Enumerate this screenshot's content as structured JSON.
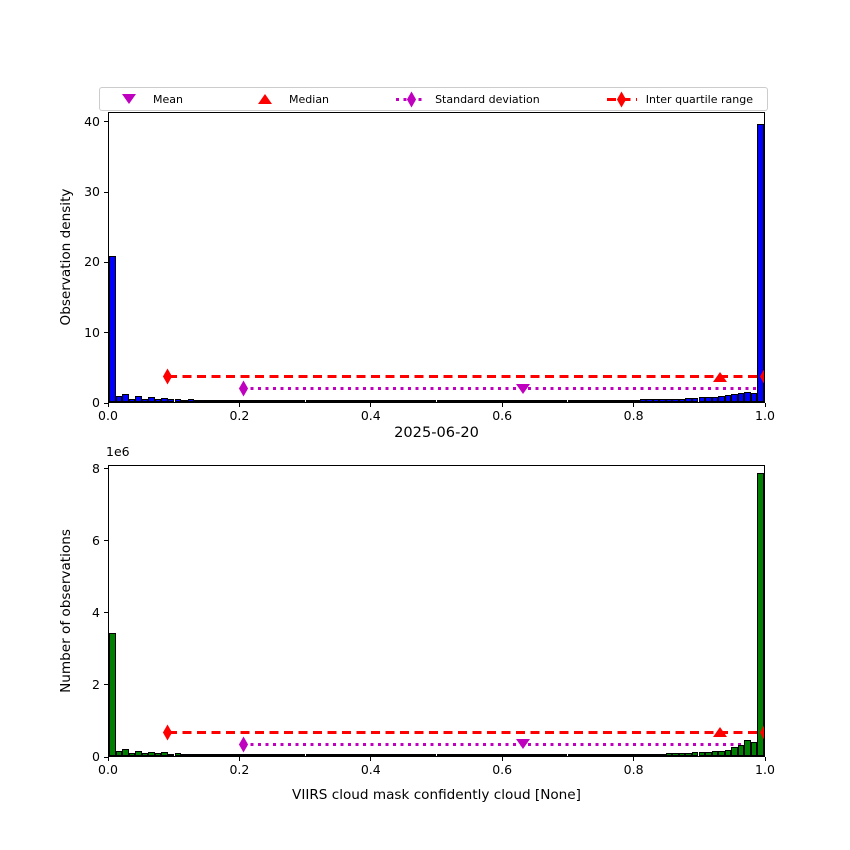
{
  "figure": {
    "title": "2025-06-20",
    "xlabel": "VIIRS cloud mask confidently cloud [None]",
    "background_color": "#ffffff",
    "axis_color": "#000000"
  },
  "legend": {
    "items": [
      {
        "label": "Mean",
        "marker": "triangle-down",
        "color": "#bf00bf"
      },
      {
        "label": "Median",
        "marker": "triangle-up",
        "color": "#ff0000"
      },
      {
        "label": "Standard deviation",
        "marker": "diamond-on-dotted-line",
        "color": "#bf00bf"
      },
      {
        "label": "Inter quartile range",
        "marker": "diamond-on-dashed-line",
        "color": "#ff0000"
      }
    ]
  },
  "chart_data": [
    {
      "type": "bar",
      "subtype": "histogram",
      "ylabel": "Observation density",
      "bar_color": "#0000ff",
      "bar_edge_color": "#000000",
      "xlim": [
        0.0,
        1.0
      ],
      "ylim": [
        0,
        41.4
      ],
      "bin_width": 0.01,
      "xticks": [
        0.0,
        0.2,
        0.4,
        0.6,
        0.8,
        1.0
      ],
      "xtick_labels": [
        "0.0",
        "0.2",
        "0.4",
        "0.6",
        "0.8",
        "1.0"
      ],
      "yticks": [
        0,
        10,
        20,
        30,
        40
      ],
      "ytick_labels": [
        "0",
        "10",
        "20",
        "30",
        "40"
      ],
      "grid": false,
      "values": [
        20.9,
        0.85,
        1.15,
        0.5,
        0.8,
        0.5,
        0.7,
        0.45,
        0.6,
        0.4,
        0.45,
        0.35,
        0.4,
        0.32,
        0.35,
        0.3,
        0.32,
        0.28,
        0.3,
        0.27,
        0.3,
        0.26,
        0.28,
        0.25,
        0.27,
        0.24,
        0.26,
        0.23,
        0.25,
        0.22,
        0.24,
        0.22,
        0.23,
        0.21,
        0.22,
        0.2,
        0.22,
        0.2,
        0.21,
        0.2,
        0.21,
        0.19,
        0.2,
        0.19,
        0.2,
        0.19,
        0.2,
        0.18,
        0.19,
        0.18,
        0.19,
        0.18,
        0.19,
        0.18,
        0.19,
        0.18,
        0.19,
        0.18,
        0.19,
        0.19,
        0.2,
        0.19,
        0.2,
        0.2,
        0.21,
        0.21,
        0.22,
        0.22,
        0.23,
        0.24,
        0.25,
        0.26,
        0.27,
        0.28,
        0.29,
        0.3,
        0.31,
        0.32,
        0.33,
        0.34,
        0.36,
        0.38,
        0.4,
        0.42,
        0.44,
        0.46,
        0.48,
        0.5,
        0.55,
        0.6,
        0.65,
        0.7,
        0.75,
        0.85,
        0.95,
        1.1,
        1.3,
        1.5,
        1.25,
        39.8
      ],
      "stats": {
        "mean_x": 0.632,
        "median_x": 0.933,
        "std_line": {
          "x0": 0.205,
          "x1": 1.0,
          "y": 1.9
        },
        "iqr_line": {
          "x0": 0.09,
          "x1": 1.0,
          "y": 3.6
        }
      }
    },
    {
      "type": "bar",
      "subtype": "histogram",
      "ylabel": "Number of observations",
      "offset_text": "1e6",
      "unit_scale": 1000000,
      "bar_color": "#008000",
      "bar_edge_color": "#000000",
      "xlim": [
        0.0,
        1.0
      ],
      "ylim": [
        0,
        8.1
      ],
      "bin_width": 0.01,
      "xticks": [
        0.0,
        0.2,
        0.4,
        0.6,
        0.8,
        1.0
      ],
      "xtick_labels": [
        "0.0",
        "0.2",
        "0.4",
        "0.6",
        "0.8",
        "1.0"
      ],
      "yticks": [
        0,
        2,
        4,
        6,
        8
      ],
      "ytick_labels": [
        "0",
        "2",
        "4",
        "6",
        "8"
      ],
      "grid": false,
      "values": [
        3.43,
        0.14,
        0.19,
        0.08,
        0.13,
        0.08,
        0.12,
        0.08,
        0.1,
        0.07,
        0.08,
        0.06,
        0.07,
        0.05,
        0.06,
        0.05,
        0.05,
        0.05,
        0.05,
        0.04,
        0.05,
        0.04,
        0.05,
        0.04,
        0.04,
        0.04,
        0.04,
        0.04,
        0.04,
        0.04,
        0.04,
        0.04,
        0.04,
        0.03,
        0.04,
        0.03,
        0.04,
        0.03,
        0.03,
        0.03,
        0.03,
        0.03,
        0.03,
        0.03,
        0.03,
        0.03,
        0.03,
        0.03,
        0.03,
        0.03,
        0.03,
        0.03,
        0.03,
        0.03,
        0.03,
        0.03,
        0.03,
        0.03,
        0.03,
        0.03,
        0.03,
        0.03,
        0.03,
        0.03,
        0.04,
        0.04,
        0.04,
        0.04,
        0.04,
        0.04,
        0.04,
        0.04,
        0.05,
        0.05,
        0.05,
        0.05,
        0.05,
        0.05,
        0.06,
        0.06,
        0.06,
        0.06,
        0.07,
        0.07,
        0.07,
        0.08,
        0.08,
        0.09,
        0.09,
        0.1,
        0.11,
        0.12,
        0.13,
        0.14,
        0.17,
        0.25,
        0.3,
        0.45,
        0.38,
        7.9
      ],
      "stats": {
        "mean_x": 0.632,
        "median_x": 0.933,
        "std_line": {
          "x0": 0.205,
          "x1": 1.0,
          "y": 0.33
        },
        "iqr_line": {
          "x0": 0.09,
          "x1": 1.0,
          "y": 0.66
        }
      }
    }
  ]
}
